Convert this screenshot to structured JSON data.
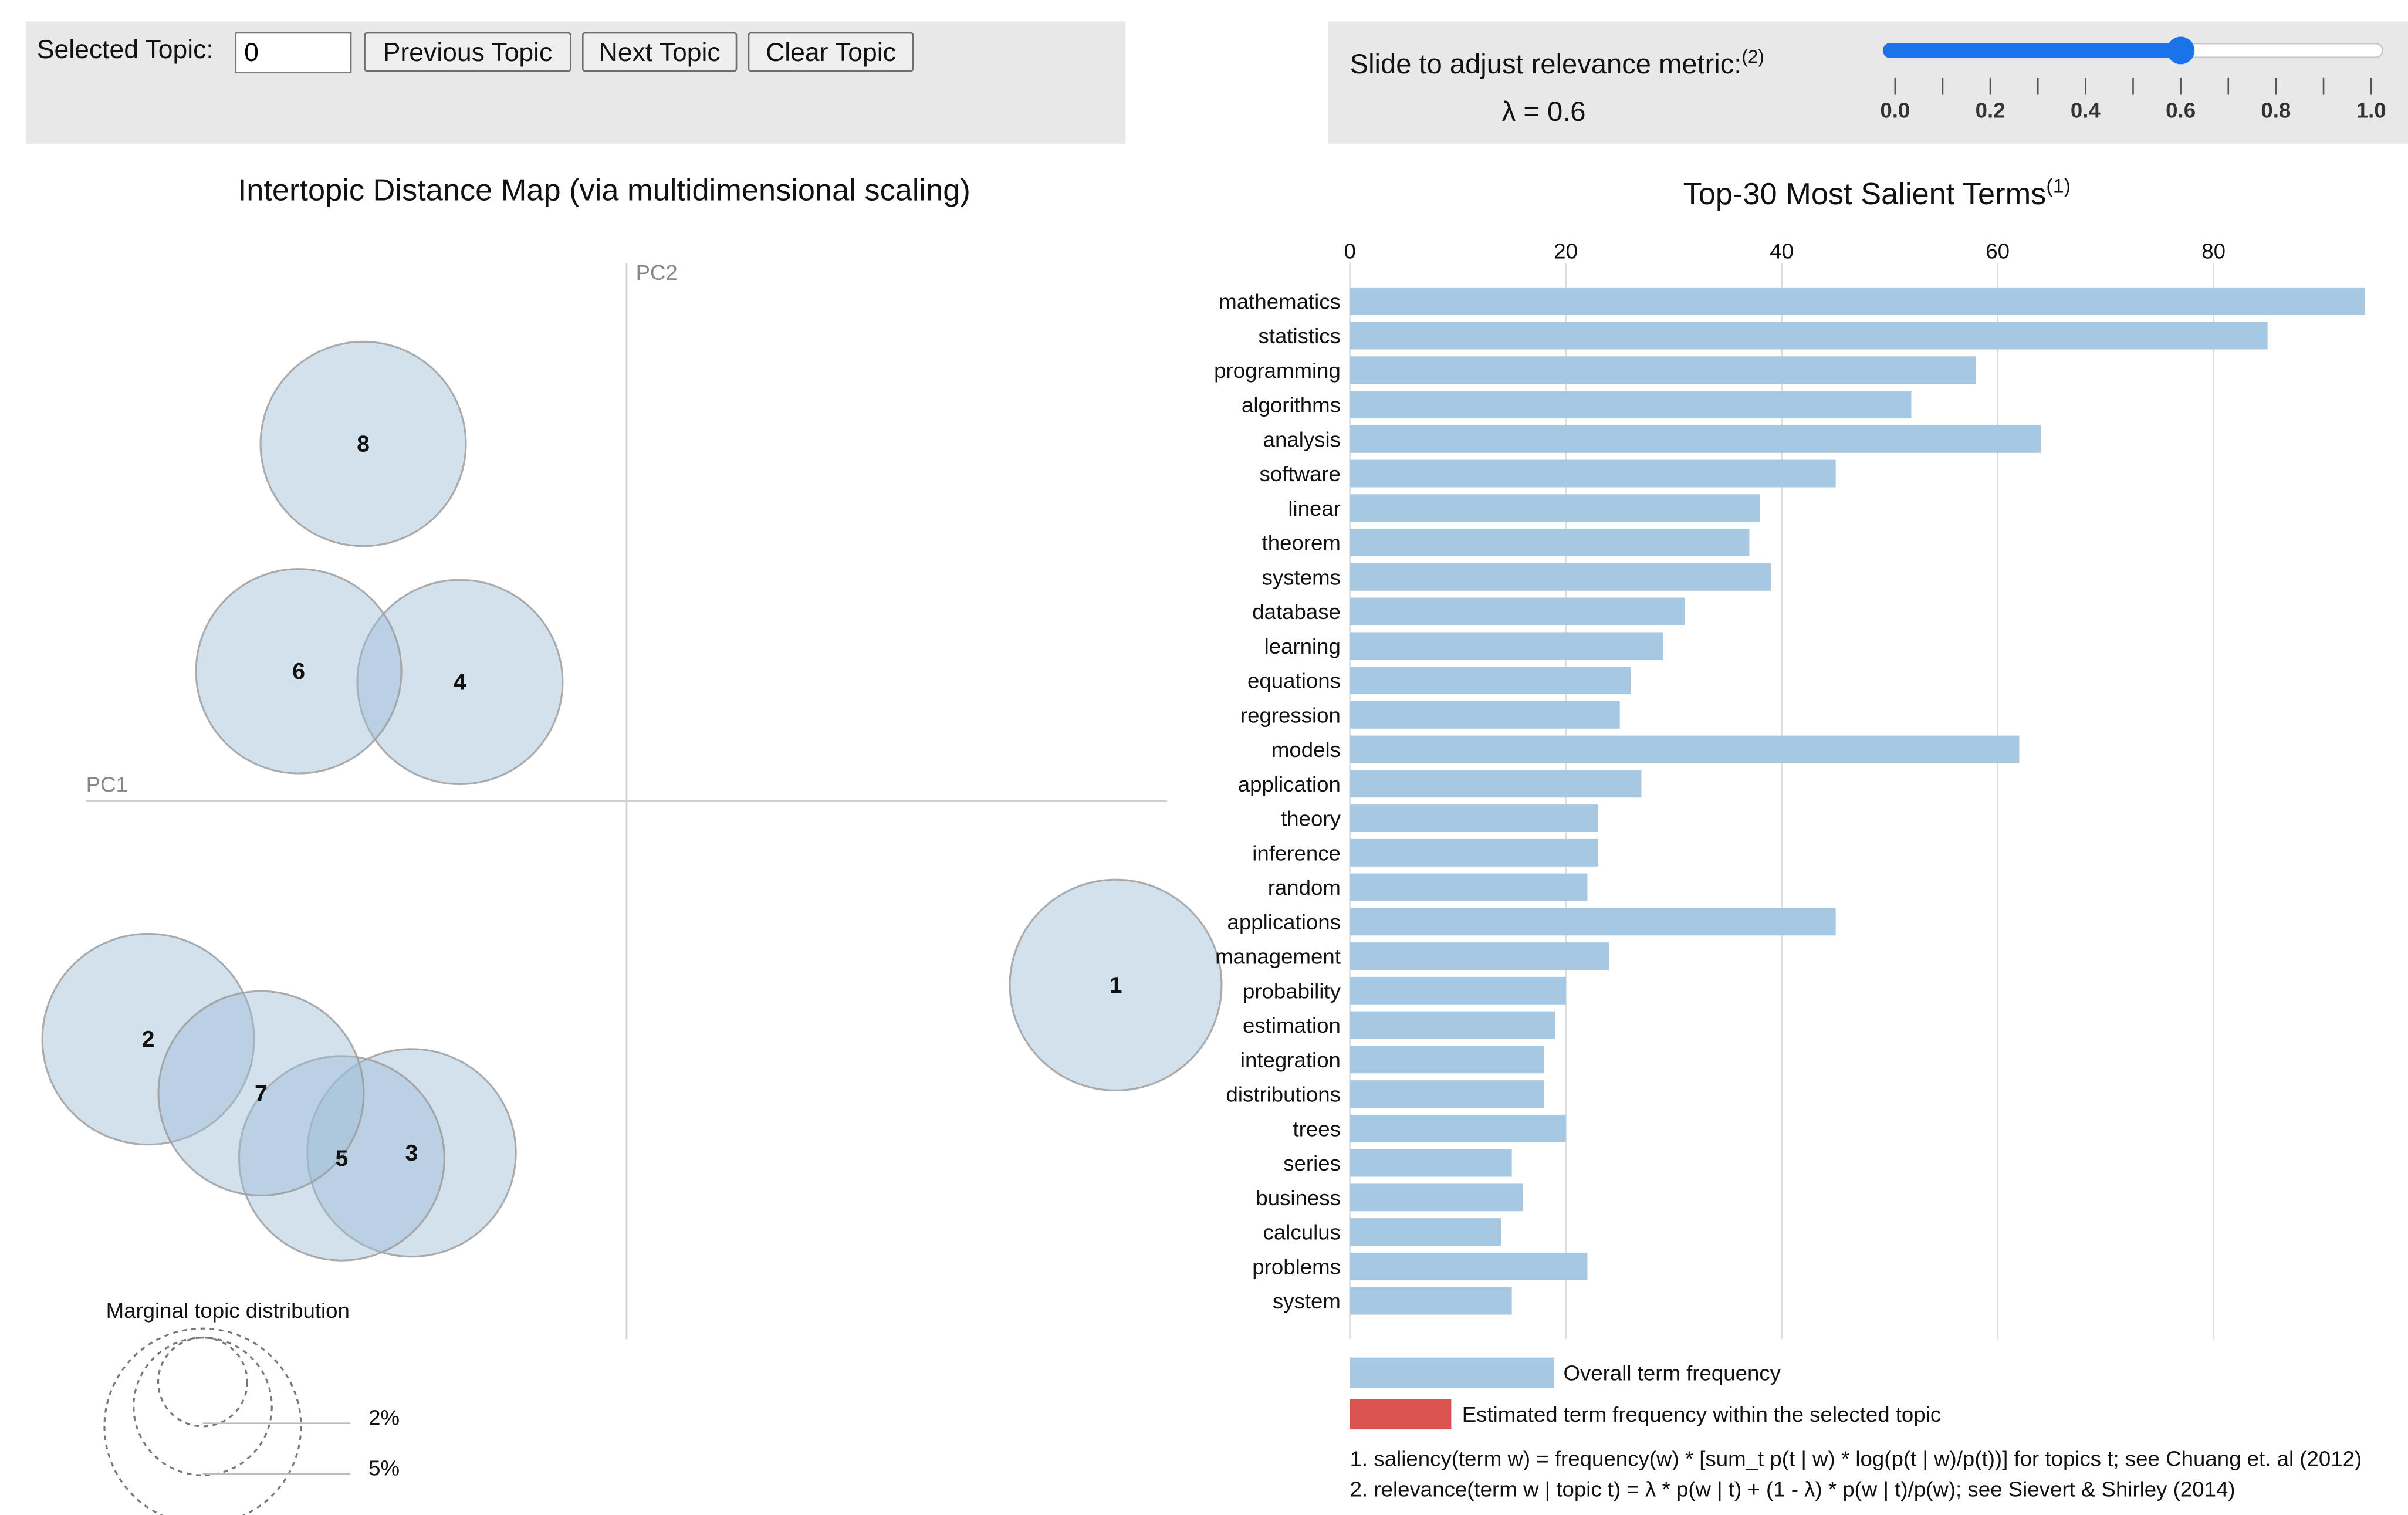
{
  "controls": {
    "selected_topic_label": "Selected Topic:",
    "selected_topic_value": "0",
    "previous_label": "Previous Topic",
    "next_label": "Next Topic",
    "clear_label": "Clear Topic"
  },
  "slider": {
    "label": "Slide to adjust relevance metric:",
    "label_sup": "(2)",
    "lambda_text": "λ = 0.6",
    "value": 0.6,
    "min": 0,
    "max": 1,
    "ticks": [
      "0.0",
      "0.2",
      "0.4",
      "0.6",
      "0.8",
      "1.0"
    ],
    "accent": "#1a73e8"
  },
  "chart_data": [
    {
      "type": "scatter",
      "title": "Intertopic Distance Map (via multidimensional scaling)",
      "xlabel": "PC1",
      "ylabel": "PC2",
      "topics": [
        {
          "label": "1",
          "x": 0.91,
          "y": -0.34,
          "r": 0.197
        },
        {
          "label": "2",
          "x": -0.89,
          "y": -0.44,
          "r": 0.197
        },
        {
          "label": "3",
          "x": -0.4,
          "y": -0.65,
          "r": 0.194
        },
        {
          "label": "4",
          "x": -0.31,
          "y": 0.22,
          "r": 0.191
        },
        {
          "label": "5",
          "x": -0.53,
          "y": -0.66,
          "r": 0.191
        },
        {
          "label": "6",
          "x": -0.61,
          "y": 0.24,
          "r": 0.191
        },
        {
          "label": "7",
          "x": -0.68,
          "y": -0.54,
          "r": 0.191
        },
        {
          "label": "8",
          "x": -0.49,
          "y": 0.66,
          "r": 0.191
        }
      ],
      "marginal_title": "Marginal topic distribution",
      "marginal_labels": [
        "2%",
        "5%"
      ],
      "circle_color": "#9dbdd8"
    },
    {
      "type": "bar",
      "title": "Top-30 Most Salient Terms",
      "title_sup": "(1)",
      "xlim": [
        0,
        94
      ],
      "xticks": [
        0,
        20,
        40,
        60,
        80
      ],
      "categories": [
        "mathematics",
        "statistics",
        "programming",
        "algorithms",
        "analysis",
        "software",
        "linear",
        "theorem",
        "systems",
        "database",
        "learning",
        "equations",
        "regression",
        "models",
        "application",
        "theory",
        "inference",
        "random",
        "applications",
        "management",
        "probability",
        "estimation",
        "integration",
        "distributions",
        "trees",
        "series",
        "business",
        "calculus",
        "problems",
        "system"
      ],
      "values": [
        94,
        85,
        58,
        52,
        64,
        45,
        38,
        37,
        39,
        31,
        29,
        26,
        25,
        62,
        27,
        23,
        23,
        22,
        45,
        24,
        20,
        19,
        18,
        18,
        20,
        15,
        16,
        14,
        22,
        15
      ],
      "bar_color": "#a6c8e2",
      "legend": [
        {
          "label": "Overall term frequency",
          "color": "#a6c8e2"
        },
        {
          "label": "Estimated term frequency within the selected topic",
          "color": "#d9534f"
        }
      ]
    }
  ],
  "footnotes": [
    "1. saliency(term w) = frequency(w) * [sum_t p(t | w) * log(p(t | w)/p(t))] for topics t; see Chuang et. al (2012)",
    "2. relevance(term w | topic t) = λ * p(w | t) + (1 - λ) * p(w | t)/p(w); see Sievert & Shirley (2014)"
  ]
}
